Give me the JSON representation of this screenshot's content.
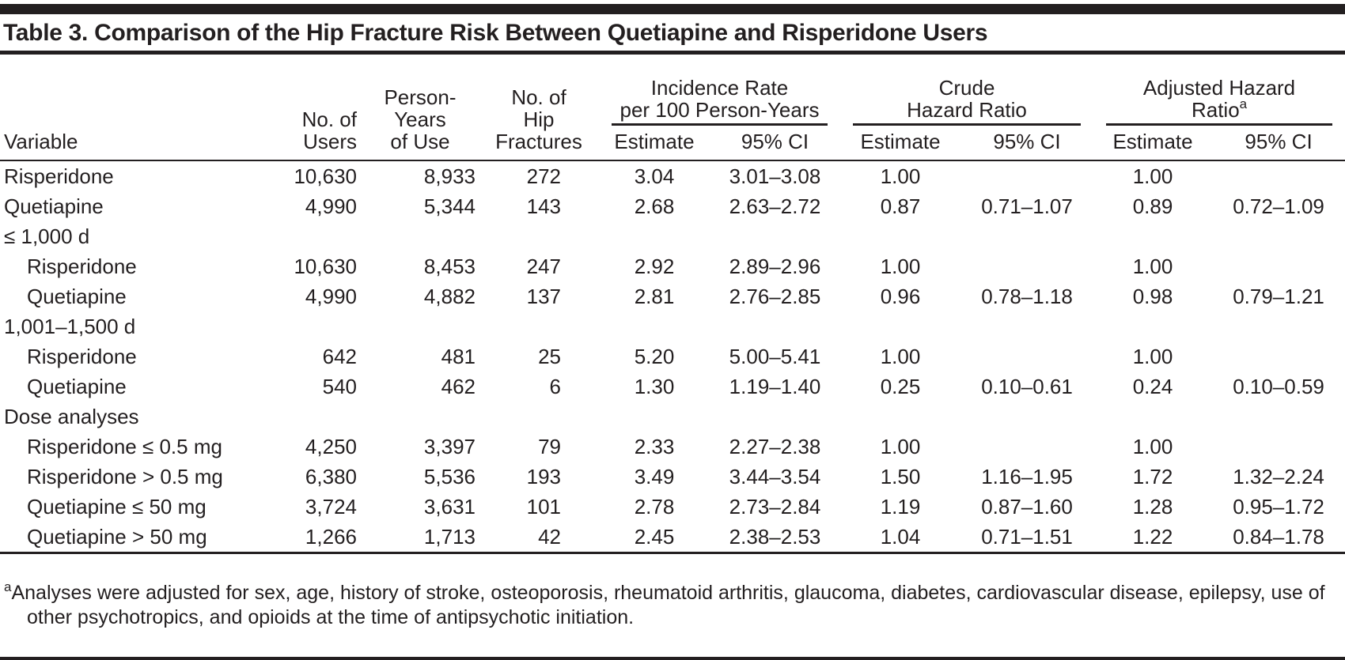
{
  "colors": {
    "ink": "#231f20",
    "background": "#ffffff"
  },
  "title": "Table 3. Comparison of the Hip Fracture Risk Between Quetiapine and Risperidone Users",
  "table": {
    "columns": {
      "variable": "Variable",
      "users": [
        "No. of",
        "Users"
      ],
      "person_years": [
        "Person-",
        "Years",
        "of Use"
      ],
      "fractures": [
        "No. of",
        "Hip",
        "Fractures"
      ],
      "estimate": "Estimate",
      "ci": "95% CI"
    },
    "groups": {
      "incidence": [
        "Incidence Rate",
        "per 100 Person-Years"
      ],
      "crude": [
        "Crude",
        "Hazard Ratio"
      ],
      "adjusted": [
        "Adjusted Hazard",
        "Ratio"
      ],
      "adjusted_sup": "a"
    },
    "rows": [
      {
        "label": "Risperidone",
        "indent": false,
        "section": false,
        "users": "10,630",
        "py": "8,933",
        "fx": "272",
        "ir_est": "3.04",
        "ir_ci": "3.01–3.08",
        "cr_est": "1.00",
        "cr_ci": "",
        "adj_est": "1.00",
        "adj_ci": ""
      },
      {
        "label": "Quetiapine",
        "indent": false,
        "section": false,
        "users": "4,990",
        "py": "5,344",
        "fx": "143",
        "ir_est": "2.68",
        "ir_ci": "2.63–2.72",
        "cr_est": "0.87",
        "cr_ci": "0.71–1.07",
        "adj_est": "0.89",
        "adj_ci": "0.72–1.09"
      },
      {
        "label": "≤ 1,000 d",
        "indent": false,
        "section": true,
        "users": "",
        "py": "",
        "fx": "",
        "ir_est": "",
        "ir_ci": "",
        "cr_est": "",
        "cr_ci": "",
        "adj_est": "",
        "adj_ci": ""
      },
      {
        "label": "Risperidone",
        "indent": true,
        "section": false,
        "users": "10,630",
        "py": "8,453",
        "fx": "247",
        "ir_est": "2.92",
        "ir_ci": "2.89–2.96",
        "cr_est": "1.00",
        "cr_ci": "",
        "adj_est": "1.00",
        "adj_ci": ""
      },
      {
        "label": "Quetiapine",
        "indent": true,
        "section": false,
        "users": "4,990",
        "py": "4,882",
        "fx": "137",
        "ir_est": "2.81",
        "ir_ci": "2.76–2.85",
        "cr_est": "0.96",
        "cr_ci": "0.78–1.18",
        "adj_est": "0.98",
        "adj_ci": "0.79–1.21"
      },
      {
        "label": "1,001–1,500 d",
        "indent": false,
        "section": true,
        "users": "",
        "py": "",
        "fx": "",
        "ir_est": "",
        "ir_ci": "",
        "cr_est": "",
        "cr_ci": "",
        "adj_est": "",
        "adj_ci": ""
      },
      {
        "label": "Risperidone",
        "indent": true,
        "section": false,
        "users": "642",
        "py": "481",
        "fx": "25",
        "ir_est": "5.20",
        "ir_ci": "5.00–5.41",
        "cr_est": "1.00",
        "cr_ci": "",
        "adj_est": "1.00",
        "adj_ci": ""
      },
      {
        "label": "Quetiapine",
        "indent": true,
        "section": false,
        "users": "540",
        "py": "462",
        "fx": "6",
        "ir_est": "1.30",
        "ir_ci": "1.19–1.40",
        "cr_est": "0.25",
        "cr_ci": "0.10–0.61",
        "adj_est": "0.24",
        "adj_ci": "0.10–0.59"
      },
      {
        "label": "Dose analyses",
        "indent": false,
        "section": true,
        "users": "",
        "py": "",
        "fx": "",
        "ir_est": "",
        "ir_ci": "",
        "cr_est": "",
        "cr_ci": "",
        "adj_est": "",
        "adj_ci": ""
      },
      {
        "label": "Risperidone ≤ 0.5 mg",
        "indent": true,
        "section": false,
        "users": "4,250",
        "py": "3,397",
        "fx": "79",
        "ir_est": "2.33",
        "ir_ci": "2.27–2.38",
        "cr_est": "1.00",
        "cr_ci": "",
        "adj_est": "1.00",
        "adj_ci": ""
      },
      {
        "label": "Risperidone > 0.5 mg",
        "indent": true,
        "section": false,
        "users": "6,380",
        "py": "5,536",
        "fx": "193",
        "ir_est": "3.49",
        "ir_ci": "3.44–3.54",
        "cr_est": "1.50",
        "cr_ci": "1.16–1.95",
        "adj_est": "1.72",
        "adj_ci": "1.32–2.24"
      },
      {
        "label": "Quetiapine ≤ 50 mg",
        "indent": true,
        "section": false,
        "users": "3,724",
        "py": "3,631",
        "fx": "101",
        "ir_est": "2.78",
        "ir_ci": "2.73–2.84",
        "cr_est": "1.19",
        "cr_ci": "0.87–1.60",
        "adj_est": "1.28",
        "adj_ci": "0.95–1.72"
      },
      {
        "label": "Quetiapine > 50 mg",
        "indent": true,
        "section": false,
        "users": "1,266",
        "py": "1,713",
        "fx": "42",
        "ir_est": "2.45",
        "ir_ci": "2.38–2.53",
        "cr_est": "1.04",
        "cr_ci": "0.71–1.51",
        "adj_est": "1.22",
        "adj_ci": "0.84–1.78"
      }
    ]
  },
  "footnote": {
    "marker": "a",
    "text": "Analyses were adjusted for sex, age, history of stroke, osteoporosis, rheumatoid arthritis, glaucoma, diabetes, cardiovascular disease, epilepsy, use of other psychotropics, and opioids at the time of antipsychotic initiation."
  }
}
